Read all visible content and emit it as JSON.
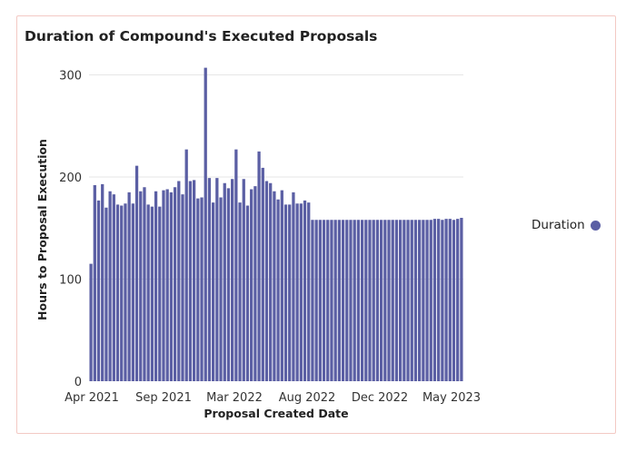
{
  "colors": {
    "bar": "#5b5fa4",
    "grid": "#e6e6e6"
  },
  "chart_data": {
    "type": "bar",
    "title": "Duration of Compound's Executed Proposals",
    "xlabel": "Proposal Created Date",
    "ylabel": "Hours to Proposal Execution",
    "ylim": [
      0,
      320
    ],
    "yticks": [
      0,
      100,
      200,
      300
    ],
    "xticks": [
      "Apr 2021",
      "Sep 2021",
      "Mar 2022",
      "Aug 2022",
      "Dec 2022",
      "May 2023"
    ],
    "grid": true,
    "legend_position": "right",
    "series": [
      {
        "name": "Duration",
        "values": [
          115,
          192,
          177,
          193,
          170,
          186,
          183,
          173,
          172,
          174,
          185,
          174,
          211,
          186,
          190,
          173,
          171,
          186,
          171,
          187,
          188,
          185,
          190,
          196,
          183,
          227,
          196,
          197,
          179,
          180,
          307,
          199,
          175,
          199,
          180,
          194,
          189,
          198,
          227,
          175,
          198,
          172,
          188,
          191,
          225,
          209,
          196,
          194,
          186,
          178,
          187,
          173,
          173,
          185,
          174,
          174,
          177,
          175,
          158,
          158,
          158,
          158,
          158,
          158,
          158,
          158,
          158,
          158,
          158,
          158,
          158,
          158,
          158,
          158,
          158,
          158,
          158,
          158,
          158,
          158,
          158,
          158,
          158,
          158,
          158,
          158,
          158,
          158,
          158,
          158,
          159,
          159,
          158,
          159,
          159,
          158,
          159,
          160
        ]
      }
    ]
  }
}
